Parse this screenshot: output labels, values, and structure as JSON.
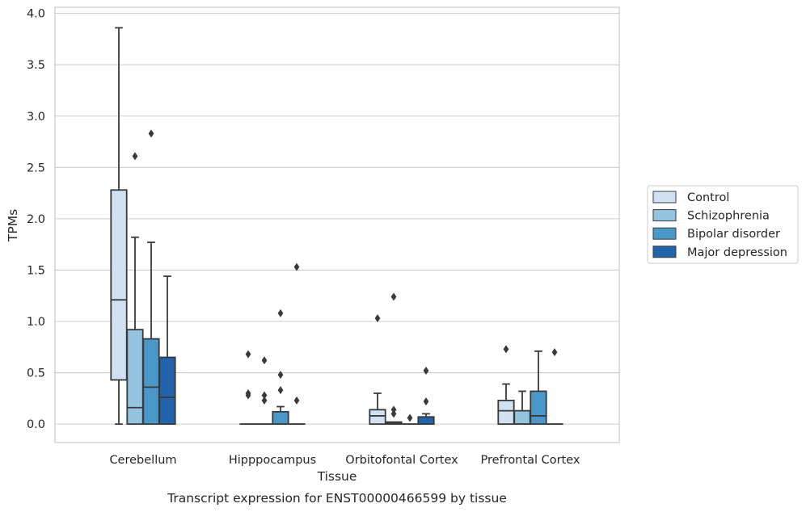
{
  "chart_data": {
    "type": "box",
    "caption": "Transcript expression for ENST00000466599 by tissue",
    "xlabel": "Tissue",
    "ylabel": "TPMs",
    "ylim": [
      -0.18,
      4.06
    ],
    "yticks": [
      "0.0",
      "0.5",
      "1.0",
      "1.5",
      "2.0",
      "2.5",
      "3.0",
      "3.5",
      "4.0"
    ],
    "grid": "horizontal",
    "legend_position": "right",
    "categories": [
      "Cerebellum",
      "Hipppocampus",
      "Orbitofontal Cortex",
      "Prefrontal Cortex"
    ],
    "series": [
      {
        "name": "Control",
        "color": "#d0e1f2",
        "boxes": [
          {
            "whislo": 0.0,
            "q1": 0.43,
            "med": 1.21,
            "q3": 2.28,
            "whishi": 3.86,
            "fliers": []
          },
          {
            "whislo": 0.0,
            "q1": 0.0,
            "med": 0.0,
            "q3": 0.0,
            "whishi": 0.0,
            "fliers": [
              0.28,
              0.3,
              0.68
            ]
          },
          {
            "whislo": 0.0,
            "q1": 0.0,
            "med": 0.08,
            "q3": 0.14,
            "whishi": 0.3,
            "fliers": [
              1.03
            ]
          },
          {
            "whislo": 0.0,
            "q1": 0.0,
            "med": 0.13,
            "q3": 0.23,
            "whishi": 0.39,
            "fliers": [
              0.73
            ]
          }
        ]
      },
      {
        "name": "Schizophrenia",
        "color": "#94c4df",
        "boxes": [
          {
            "whislo": 0.0,
            "q1": 0.0,
            "med": 0.16,
            "q3": 0.92,
            "whishi": 1.82,
            "fliers": [
              2.61
            ]
          },
          {
            "whislo": 0.0,
            "q1": 0.0,
            "med": 0.0,
            "q3": 0.0,
            "whishi": 0.0,
            "fliers": [
              0.23,
              0.28,
              0.62
            ]
          },
          {
            "whislo": 0.0,
            "q1": 0.0,
            "med": 0.01,
            "q3": 0.02,
            "whishi": 0.02,
            "fliers": [
              0.1,
              0.14,
              1.24
            ]
          },
          {
            "whislo": 0.0,
            "q1": 0.0,
            "med": 0.0,
            "q3": 0.13,
            "whishi": 0.32,
            "fliers": []
          }
        ]
      },
      {
        "name": "Bipolar disorder",
        "color": "#4a98c9",
        "boxes": [
          {
            "whislo": 0.0,
            "q1": 0.0,
            "med": 0.36,
            "q3": 0.83,
            "whishi": 1.77,
            "fliers": [
              2.83
            ]
          },
          {
            "whislo": 0.0,
            "q1": 0.0,
            "med": 0.0,
            "q3": 0.12,
            "whishi": 0.17,
            "fliers": [
              0.33,
              0.48,
              1.08
            ]
          },
          {
            "whislo": 0.0,
            "q1": 0.0,
            "med": 0.0,
            "q3": 0.0,
            "whishi": 0.0,
            "fliers": [
              0.06
            ]
          },
          {
            "whislo": 0.0,
            "q1": 0.0,
            "med": 0.08,
            "q3": 0.32,
            "whishi": 0.71,
            "fliers": []
          }
        ]
      },
      {
        "name": "Major depression",
        "color": "#2164ab",
        "boxes": [
          {
            "whislo": 0.0,
            "q1": 0.0,
            "med": 0.26,
            "q3": 0.65,
            "whishi": 1.44,
            "fliers": []
          },
          {
            "whislo": 0.0,
            "q1": 0.0,
            "med": 0.0,
            "q3": 0.0,
            "whishi": 0.0,
            "fliers": [
              0.23,
              1.53
            ]
          },
          {
            "whislo": 0.0,
            "q1": 0.0,
            "med": 0.0,
            "q3": 0.07,
            "whishi": 0.1,
            "fliers": [
              0.22,
              0.52
            ]
          },
          {
            "whislo": 0.0,
            "q1": 0.0,
            "med": 0.0,
            "q3": 0.0,
            "whishi": 0.0,
            "fliers": [
              0.7
            ]
          }
        ]
      }
    ]
  }
}
